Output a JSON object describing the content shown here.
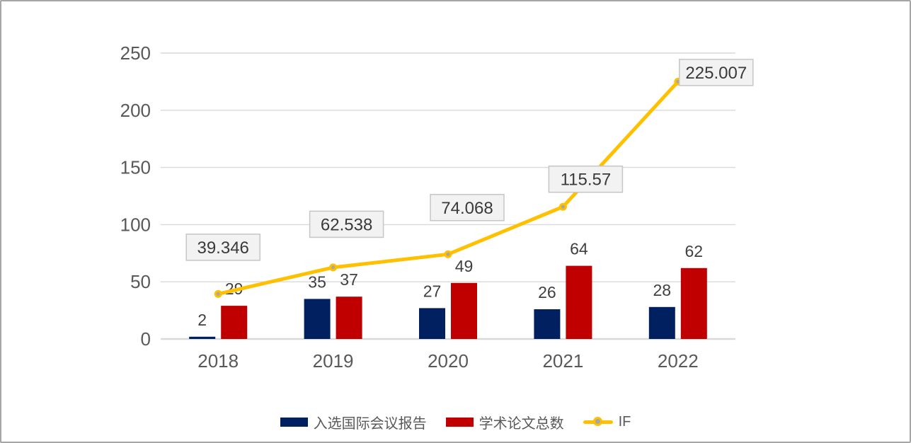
{
  "frame": {
    "background": "#ffffff",
    "border_color": "#a6a6a6"
  },
  "chart_data": {
    "type": "combo-bar-line",
    "title": "",
    "xlabel": "",
    "ylabel": "",
    "categories": [
      "2018",
      "2019",
      "2020",
      "2021",
      "2022"
    ],
    "series": [
      {
        "name": "入选国际会议报告",
        "type": "bar",
        "color": "#002060",
        "values": [
          2,
          35,
          27,
          26,
          28
        ],
        "value_labels": [
          "2",
          "35",
          "27",
          "26",
          "28"
        ]
      },
      {
        "name": "学术论文总数",
        "type": "bar",
        "color": "#c00000",
        "values": [
          29,
          37,
          49,
          64,
          62
        ],
        "value_labels": [
          "29",
          "37",
          "49",
          "64",
          "62"
        ]
      },
      {
        "name": "IF",
        "type": "line",
        "color": "#ffc000",
        "marker_fill": "#a6a6a6",
        "values": [
          39.346,
          62.538,
          74.068,
          115.57,
          225.007
        ],
        "value_labels": [
          "39.346",
          "62.538",
          "74.068",
          "115.57",
          "225.007"
        ],
        "label_offsets": [
          [
            7,
            -66
          ],
          [
            19,
            -61
          ],
          [
            27,
            -66
          ],
          [
            32,
            -39
          ],
          [
            54,
            -13
          ]
        ]
      }
    ],
    "y_axis": {
      "min": 0,
      "max": 250,
      "step": 50,
      "ticks": [
        "0",
        "50",
        "100",
        "150",
        "200",
        "250"
      ]
    },
    "grid": true,
    "legend_position": "bottom",
    "colors": {
      "grid": "#d9d9d9",
      "axis_text": "#595959",
      "bar_label_text": "#404040",
      "if_label_text": "#3a3a3a",
      "label_box_fill": "#f2f2f2",
      "label_box_border": "#c6c6c6"
    }
  }
}
